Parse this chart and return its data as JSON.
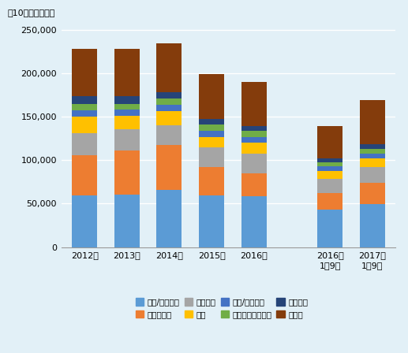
{
  "categories": [
    "2012年",
    "2013年",
    "2014年",
    "2015年",
    "2016年",
    "2016年\n1～9月",
    "2017年\n1～9月"
  ],
  "series": [
    {
      "name": "電気/電子機器",
      "color": "#5B9BD5",
      "values": [
        59300,
        60700,
        65800,
        59500,
        58400,
        43000,
        49700
      ]
    },
    {
      "name": "銃物性燃料",
      "color": "#ED7D31",
      "values": [
        46500,
        50800,
        51600,
        32400,
        26800,
        19100,
        24400
      ]
    },
    {
      "name": "一般機械",
      "color": "#A5A5A5",
      "values": [
        24900,
        24100,
        23200,
        22500,
        22000,
        16300,
        17700
      ]
    },
    {
      "name": "油脂",
      "color": "#FFC000",
      "values": [
        19500,
        15900,
        15800,
        12600,
        12600,
        9100,
        10000
      ]
    },
    {
      "name": "測定/医療機器",
      "color": "#4472C4",
      "values": [
        7500,
        6700,
        7400,
        6900,
        7100,
        5300,
        5700
      ]
    },
    {
      "name": "プラスチック製品",
      "color": "#70AD47",
      "values": [
        6900,
        6800,
        7600,
        7100,
        6900,
        5100,
        5500
      ]
    },
    {
      "name": "ゴム製品",
      "color": "#264478",
      "values": [
        9100,
        8300,
        6900,
        6200,
        5800,
        4200,
        5400
      ]
    },
    {
      "name": "その他",
      "color": "#843C0C",
      "values": [
        54000,
        55100,
        55800,
        52100,
        50400,
        37300,
        50400
      ]
    }
  ],
  "ylabel": "（10００万ドル）",
  "ylim": [
    0,
    260000
  ],
  "yticks": [
    0,
    50000,
    100000,
    150000,
    200000,
    250000
  ],
  "ytick_labels": [
    "0",
    "50,000",
    "100,000",
    "150,000",
    "200,000",
    "250,000"
  ],
  "background_color": "#E2F0F7",
  "bar_width": 0.6,
  "figsize": [
    5.17,
    4.48
  ],
  "dpi": 100
}
